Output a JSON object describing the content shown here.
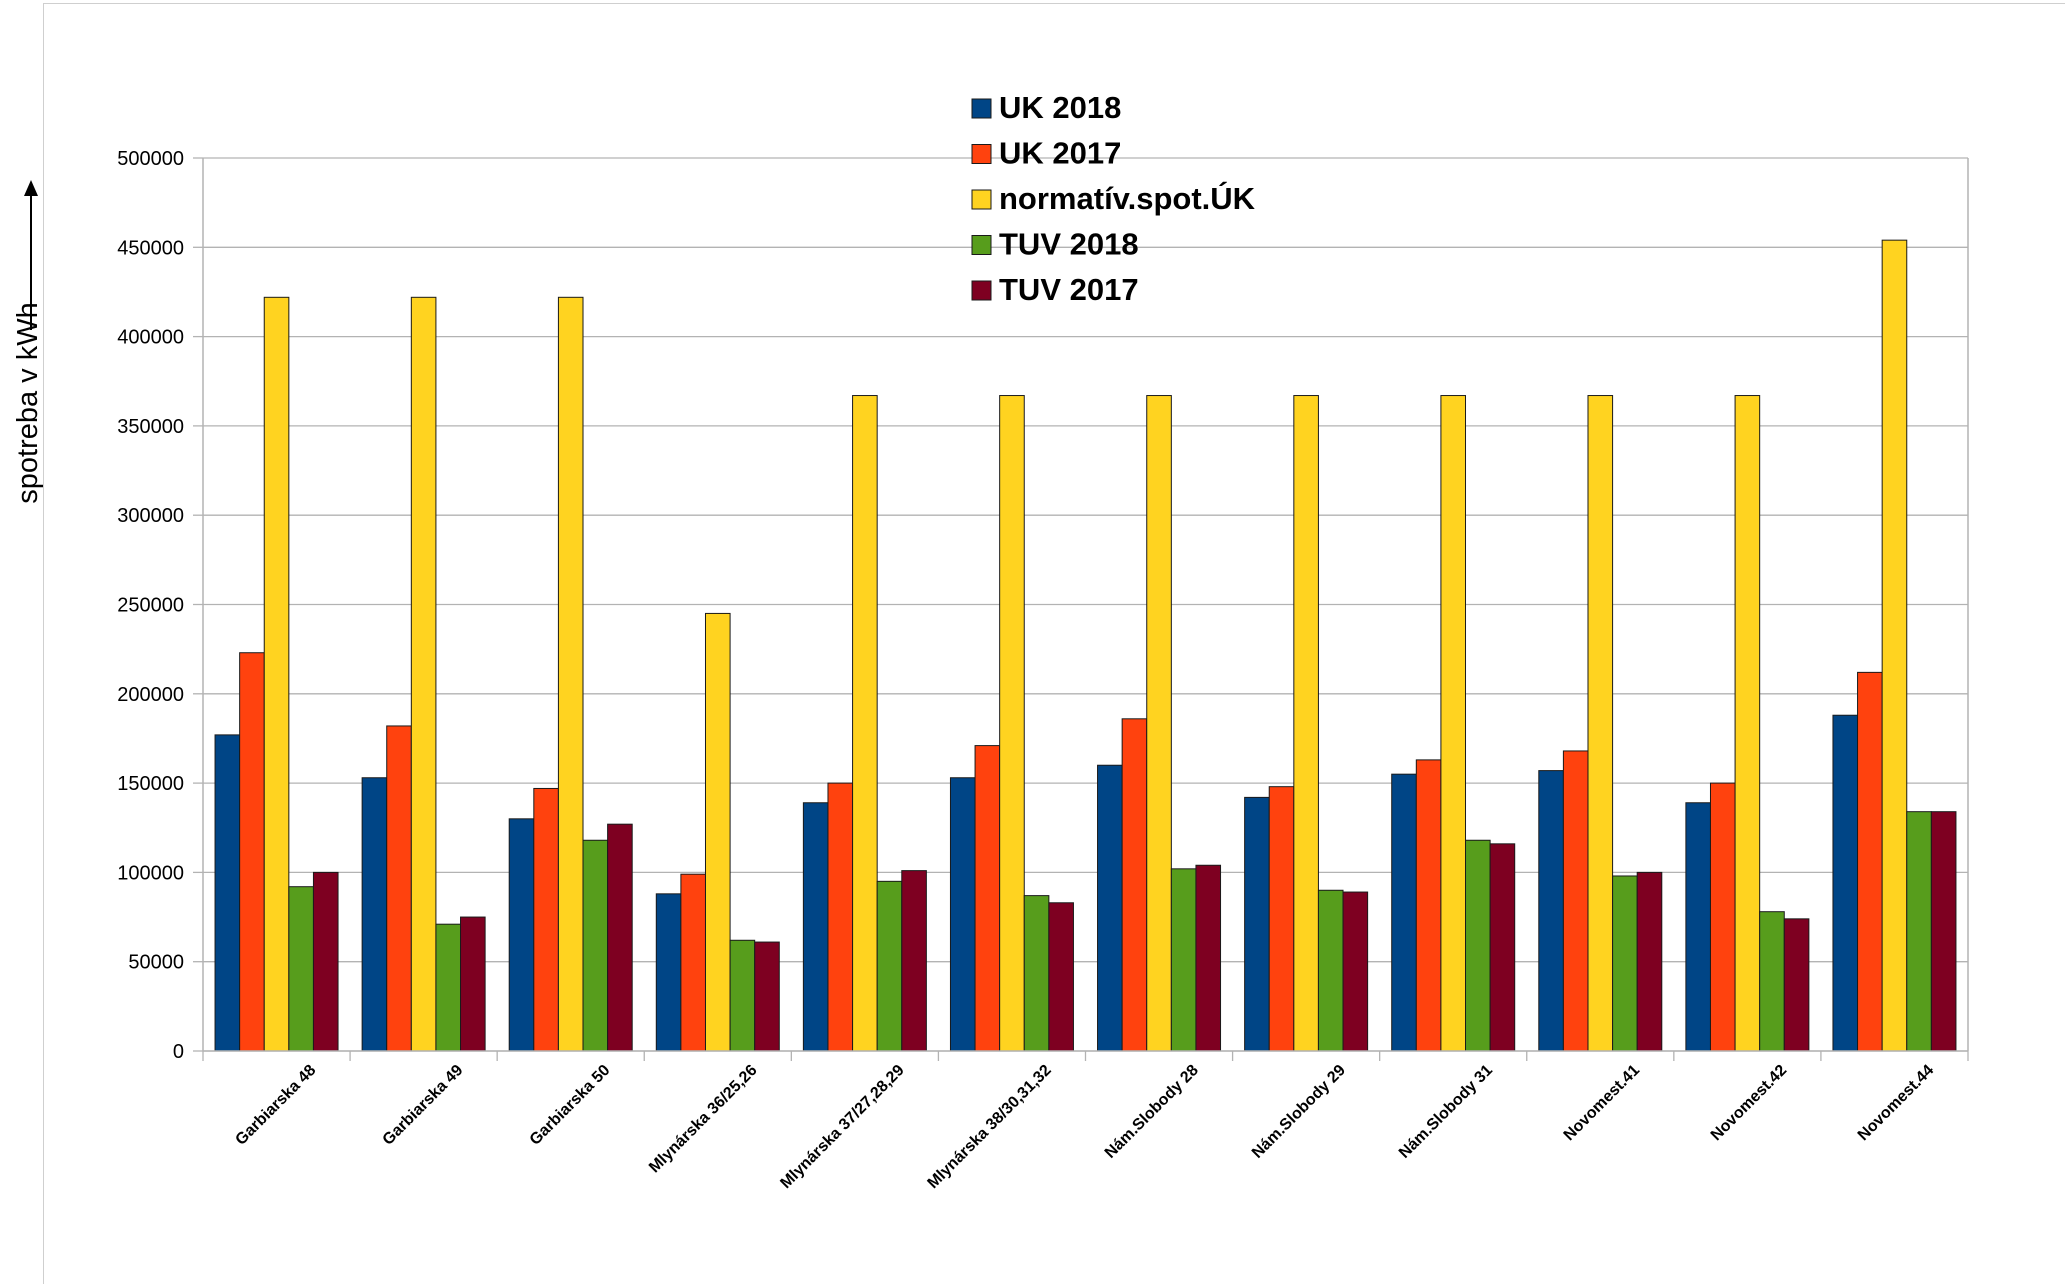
{
  "chart_data": {
    "type": "bar",
    "title": "",
    "xlabel": "",
    "ylabel": "spotreba v kWh",
    "ylim": [
      0,
      500000
    ],
    "yticks": [
      0,
      50000,
      100000,
      150000,
      200000,
      250000,
      300000,
      350000,
      400000,
      450000,
      500000
    ],
    "grid": true,
    "legend_position": "top-center",
    "categories": [
      "Garbiarska 48",
      "Garbiarska 49",
      "Garbiarska 50",
      "Mlynárska 36/25,26",
      "Mlynárska 37/27,28,29",
      "Mlynárska 38/30,31,32",
      "Nám.Slobody 28",
      "Nám.Slobody 29",
      "Nám.Slobody 31",
      "Novomest.41",
      "Novomest.42",
      "Novomest.44"
    ],
    "series": [
      {
        "name": "UK 2018",
        "color": "#004586",
        "values": [
          177000,
          153000,
          130000,
          88000,
          139000,
          153000,
          160000,
          142000,
          155000,
          157000,
          139000,
          188000
        ]
      },
      {
        "name": "UK 2017",
        "color": "#ff420e",
        "values": [
          223000,
          182000,
          147000,
          99000,
          150000,
          171000,
          186000,
          148000,
          163000,
          168000,
          150000,
          212000
        ]
      },
      {
        "name": "normatív.spot.ÚK",
        "color": "#ffd320",
        "values": [
          422000,
          422000,
          422000,
          245000,
          367000,
          367000,
          367000,
          367000,
          367000,
          367000,
          367000,
          454000
        ]
      },
      {
        "name": "TUV 2018",
        "color": "#579d1c",
        "values": [
          92000,
          71000,
          118000,
          62000,
          95000,
          87000,
          102000,
          90000,
          118000,
          98000,
          78000,
          134000
        ]
      },
      {
        "name": "TUV 2017",
        "color": "#7e0021",
        "values": [
          100000,
          75000,
          127000,
          61000,
          101000,
          83000,
          104000,
          89000,
          116000,
          100000,
          74000,
          134000
        ]
      }
    ]
  }
}
